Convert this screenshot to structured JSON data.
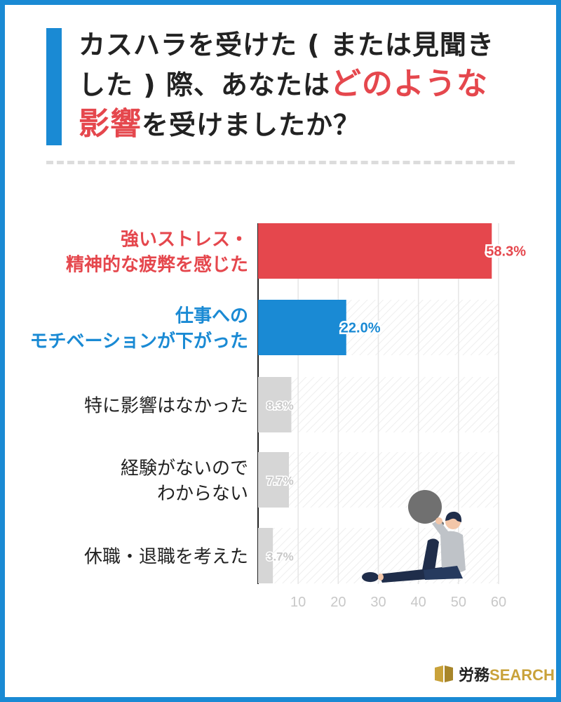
{
  "title": {
    "line1": "カスハラを受けた ( または見聞き",
    "line2_pre": "した ) 際、あなたは",
    "line2_hl": "どのような",
    "line3_hl": "影響",
    "line3_post": "を受けましたか？"
  },
  "brand": {
    "ja": "労務",
    "en": "SEARCH"
  },
  "colors": {
    "accent_blue": "#1a8ad4",
    "accent_red": "#e5474d",
    "bar_gray": "#d6d6d6",
    "axis_label_gray": "#c8c8c8"
  },
  "chart_data": {
    "type": "bar",
    "orientation": "horizontal",
    "categories": [
      {
        "lines": [
          "強いストレス・",
          "精神的な疲弊を感じた"
        ],
        "color": "#e5474d"
      },
      {
        "lines": [
          "仕事への",
          "モチベーションが下がった"
        ],
        "color": "#1a8ad4"
      },
      {
        "lines": [
          "特に影響はなかった"
        ],
        "color": "#222222"
      },
      {
        "lines": [
          "経験がないので",
          "わからない"
        ],
        "color": "#222222"
      },
      {
        "lines": [
          "休職・退職を考えた"
        ],
        "color": "#222222"
      }
    ],
    "values": [
      58.3,
      22.0,
      8.3,
      7.7,
      3.7
    ],
    "value_labels": [
      "58.3%",
      "22.0%",
      "8.3%",
      "7.7%",
      "3.7%"
    ],
    "bar_colors": [
      "#e5474d",
      "#1a8ad4",
      "#d6d6d6",
      "#d6d6d6",
      "#d6d6d6"
    ],
    "xlim": [
      0,
      60
    ],
    "xticks": [
      10,
      20,
      30,
      40,
      50,
      60
    ],
    "grid": true
  }
}
